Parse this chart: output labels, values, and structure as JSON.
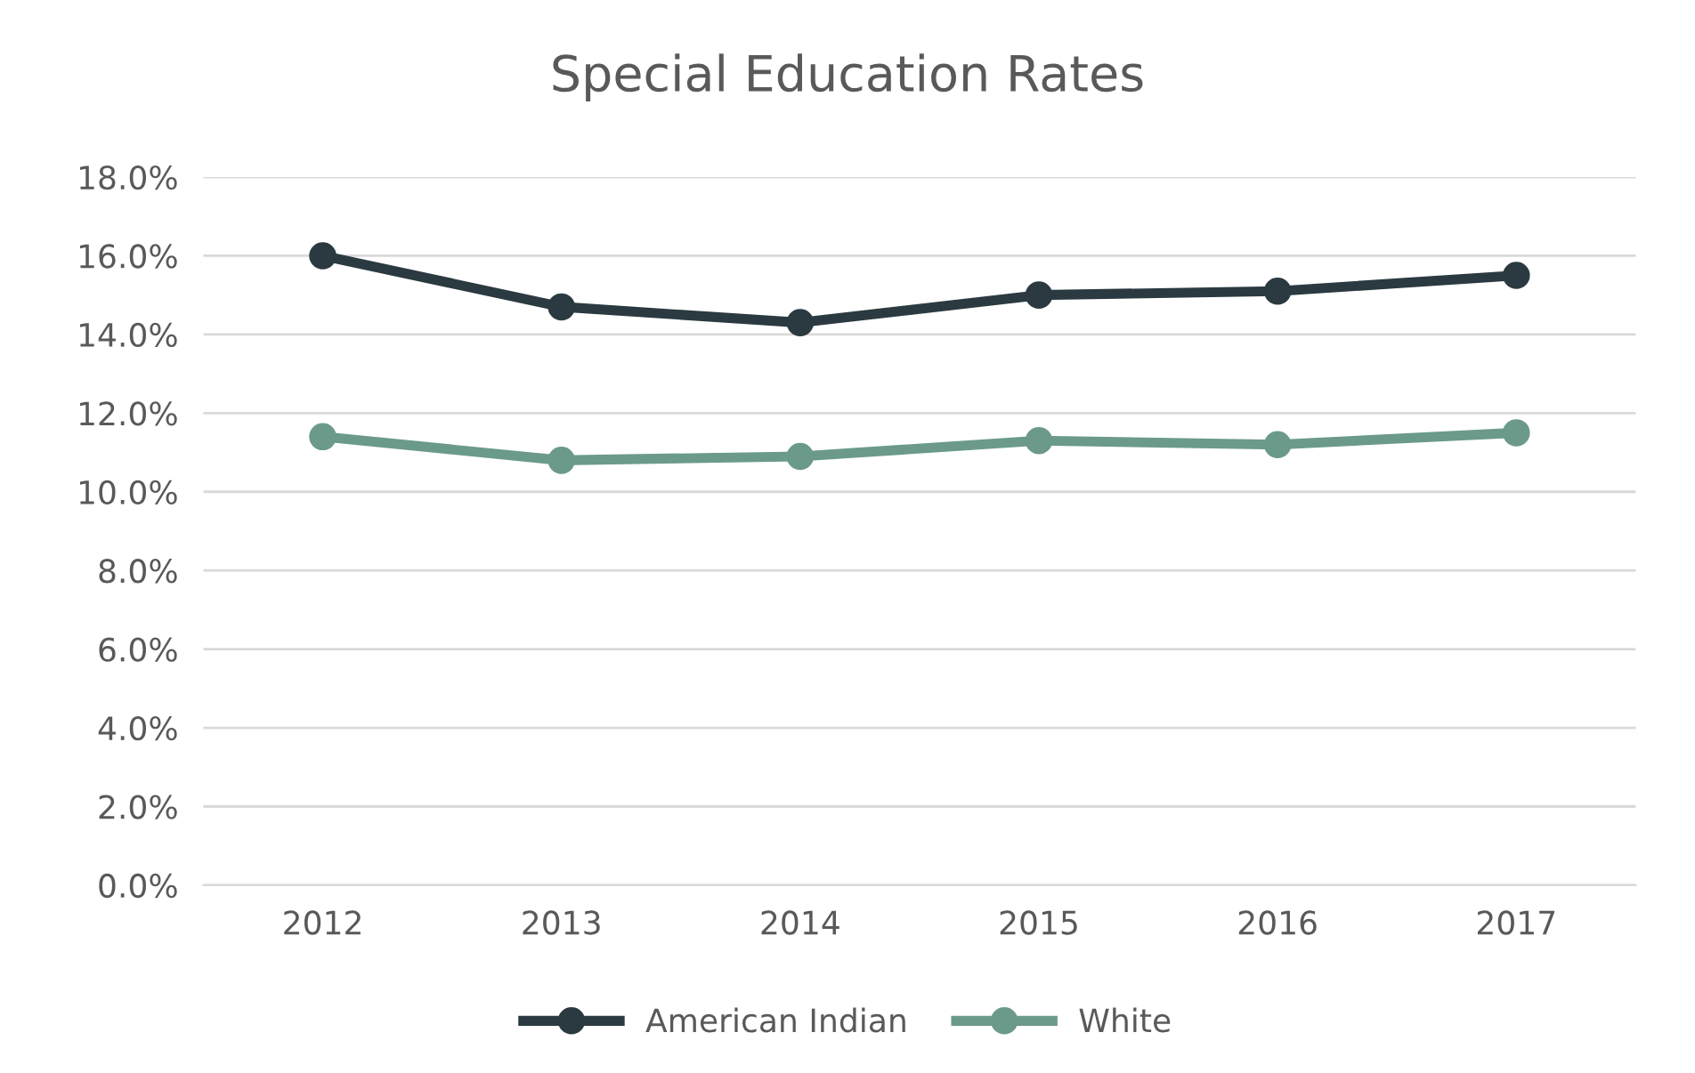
{
  "chart_data": {
    "type": "line",
    "title": "Special Education Rates",
    "categories": [
      "2012",
      "2013",
      "2014",
      "2015",
      "2016",
      "2017"
    ],
    "series": [
      {
        "name": "American Indian",
        "color": "#2b3a40",
        "values": [
          16.0,
          14.7,
          14.3,
          15.0,
          15.1,
          15.5
        ]
      },
      {
        "name": "White",
        "color": "#6b9a8b",
        "values": [
          11.4,
          10.8,
          10.9,
          11.3,
          11.2,
          11.5
        ]
      }
    ],
    "ylim": [
      0,
      18
    ],
    "yticks": [
      {
        "value": 0,
        "label": "0.0%"
      },
      {
        "value": 2,
        "label": "2.0%"
      },
      {
        "value": 4,
        "label": "4.0%"
      },
      {
        "value": 6,
        "label": "6.0%"
      },
      {
        "value": 8,
        "label": "8.0%"
      },
      {
        "value": 10,
        "label": "10.0%"
      },
      {
        "value": 12,
        "label": "12.0%"
      },
      {
        "value": 14,
        "label": "14.0%"
      },
      {
        "value": 16,
        "label": "16.0%"
      },
      {
        "value": 18,
        "label": "18.0%"
      }
    ],
    "grid": "y",
    "legend": "bottom",
    "marker": "circle",
    "line_style": "solid"
  }
}
